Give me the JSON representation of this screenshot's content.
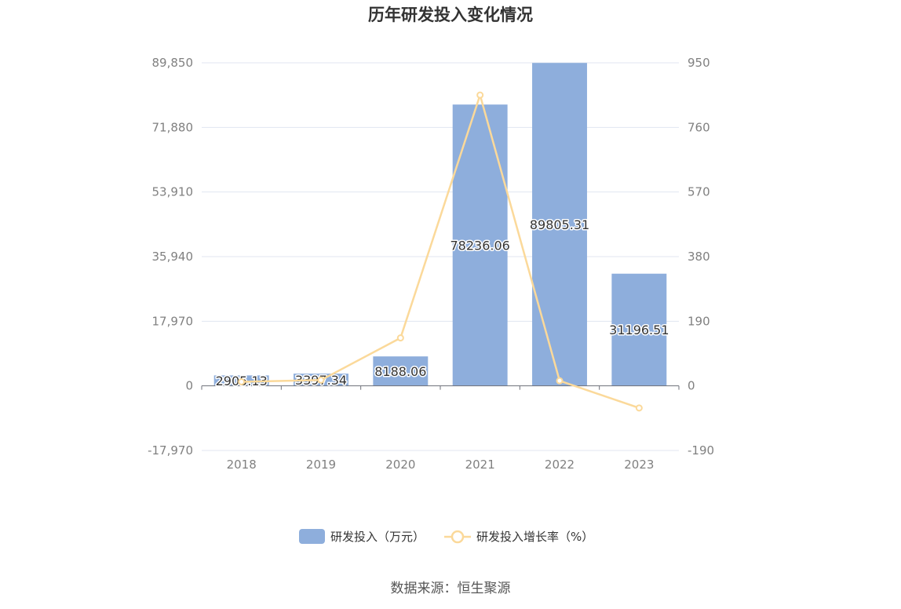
{
  "chart_data": {
    "type": "bar",
    "title": "历年研发投入变化情况",
    "categories": [
      "2018",
      "2019",
      "2020",
      "2021",
      "2022",
      "2023"
    ],
    "series": [
      {
        "name": "研发投入（万元）",
        "type": "bar",
        "axis": "left",
        "color": "#8eaedc",
        "values": [
          2905.13,
          3397.34,
          8188.06,
          78236.06,
          89805.31,
          31196.51
        ],
        "labels": [
          "2905.13",
          "3397.34",
          "8188.06",
          "78236.06",
          "89805.31",
          "31196.51"
        ]
      },
      {
        "name": "研发投入增长率（%）",
        "type": "line",
        "axis": "right",
        "color": "#fbd99a",
        "values": [
          12,
          17,
          141,
          855,
          15,
          -65
        ]
      }
    ],
    "y_left": {
      "min": -17970,
      "max": 89850,
      "ticks": [
        -17970,
        0,
        17970,
        35940,
        53910,
        71880,
        89850
      ],
      "tick_labels": [
        "-17,970",
        "0",
        "17,970",
        "35,940",
        "53,910",
        "71,880",
        "89,850"
      ]
    },
    "y_right": {
      "min": -190,
      "max": 950,
      "ticks": [
        -190,
        0,
        190,
        380,
        570,
        760,
        950
      ],
      "tick_labels": [
        "-190",
        "0",
        "190",
        "380",
        "570",
        "760",
        "950"
      ]
    },
    "grid": true,
    "legend": "bottom-center"
  },
  "source": "数据来源：恒生聚源"
}
